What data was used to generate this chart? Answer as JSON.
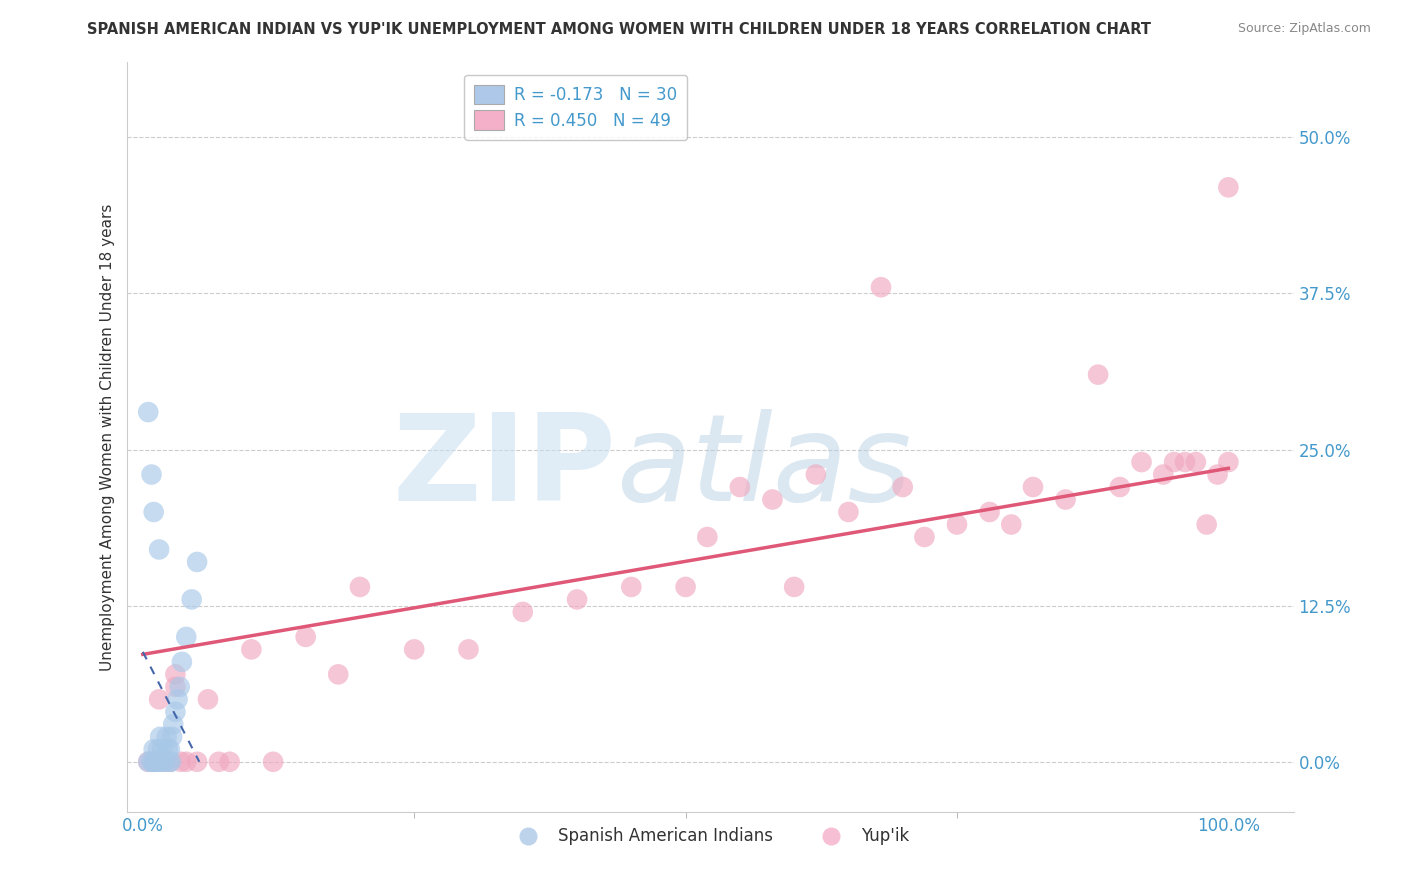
{
  "title": "SPANISH AMERICAN INDIAN VS YUP'IK UNEMPLOYMENT AMONG WOMEN WITH CHILDREN UNDER 18 YEARS CORRELATION CHART",
  "source": "Source: ZipAtlas.com",
  "ylabel": "Unemployment Among Women with Children Under 18 years",
  "ytick_labels": [
    "0.0%",
    "12.5%",
    "25.0%",
    "37.5%",
    "50.0%"
  ],
  "ytick_values": [
    0.0,
    0.125,
    0.25,
    0.375,
    0.5
  ],
  "xlim": [
    -0.015,
    1.06
  ],
  "ylim": [
    -0.04,
    0.56
  ],
  "watermark_zip": "ZIP",
  "watermark_atlas": "atlas",
  "legend_label1": "R = -0.173   N = 30",
  "legend_label2": "R = 0.450   N = 49",
  "legend_label_bottom": [
    "Spanish American Indians",
    "Yup'ik"
  ],
  "blue_color": "#a8c8e8",
  "pink_color": "#f0a8c0",
  "blue_line_color": "#4466aa",
  "blue_line_style": "dashed",
  "pink_line_color": "#e05878",
  "title_color": "#333333",
  "source_color": "#888888",
  "axis_label_color": "#333333",
  "tick_color": "#4499cc",
  "grid_color": "#cccccc",
  "blue_x": [
    0.005,
    0.008,
    0.01,
    0.01,
    0.012,
    0.013,
    0.014,
    0.015,
    0.016,
    0.017,
    0.018,
    0.02,
    0.022,
    0.023,
    0.024,
    0.025,
    0.026,
    0.027,
    0.028,
    0.03,
    0.032,
    0.034,
    0.036,
    0.04,
    0.045,
    0.05,
    0.005,
    0.008,
    0.01,
    0.015
  ],
  "blue_y": [
    0.0,
    0.0,
    0.0,
    0.01,
    0.0,
    0.0,
    0.01,
    0.0,
    0.02,
    0.0,
    0.01,
    0.0,
    0.02,
    0.01,
    0.0,
    0.01,
    0.0,
    0.02,
    0.03,
    0.04,
    0.05,
    0.06,
    0.08,
    0.1,
    0.13,
    0.16,
    0.28,
    0.23,
    0.2,
    0.17
  ],
  "pink_x": [
    0.005,
    0.01,
    0.015,
    0.02,
    0.025,
    0.03,
    0.035,
    0.04,
    0.05,
    0.06,
    0.07,
    0.08,
    0.1,
    0.12,
    0.15,
    0.18,
    0.2,
    0.25,
    0.3,
    0.35,
    0.4,
    0.45,
    0.5,
    0.52,
    0.55,
    0.58,
    0.6,
    0.62,
    0.65,
    0.68,
    0.7,
    0.72,
    0.75,
    0.78,
    0.8,
    0.82,
    0.85,
    0.88,
    0.9,
    0.92,
    0.94,
    0.95,
    0.96,
    0.97,
    0.98,
    0.99,
    1.0,
    1.0,
    0.03
  ],
  "pink_y": [
    0.0,
    0.0,
    0.05,
    0.0,
    0.0,
    0.07,
    0.0,
    0.0,
    0.0,
    0.05,
    0.0,
    0.0,
    0.09,
    0.0,
    0.1,
    0.07,
    0.14,
    0.09,
    0.09,
    0.12,
    0.13,
    0.14,
    0.14,
    0.18,
    0.22,
    0.21,
    0.14,
    0.23,
    0.2,
    0.38,
    0.22,
    0.18,
    0.19,
    0.2,
    0.19,
    0.22,
    0.21,
    0.31,
    0.22,
    0.24,
    0.23,
    0.24,
    0.24,
    0.24,
    0.19,
    0.23,
    0.24,
    0.46,
    0.06
  ],
  "pink_line_x": [
    0.0,
    1.0
  ],
  "pink_line_y": [
    0.086,
    0.235
  ],
  "blue_line_x": [
    0.0,
    0.052
  ],
  "blue_line_y": [
    0.088,
    0.0
  ]
}
